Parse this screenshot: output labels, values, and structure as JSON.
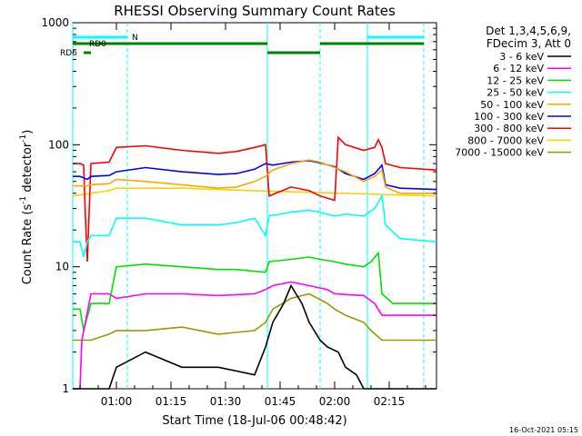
{
  "chart_data": {
    "type": "line",
    "title": "RHESSI Observing Summary Count Rates",
    "xlabel": "Start Time (18-Jul-06 00:48:42)",
    "ylabel_main": "Count Rate (s",
    "ylabel_sup1": "-1",
    "ylabel_mid": " detector",
    "ylabel_sup2": "-1",
    "ylabel_end": ")",
    "yscale": "log",
    "ylim": [
      1,
      1000
    ],
    "xlim_minutes": [
      0,
      100
    ],
    "x_ticks": [
      {
        "label": "01:00",
        "minute": 12
      },
      {
        "label": "01:15",
        "minute": 27
      },
      {
        "label": "01:30",
        "minute": 42
      },
      {
        "label": "01:45",
        "minute": 57
      },
      {
        "label": "02:00",
        "minute": 72
      },
      {
        "label": "02:15",
        "minute": 87
      }
    ],
    "y_ticks": [
      {
        "label": "1",
        "value": 1
      },
      {
        "label": "10",
        "value": 10
      },
      {
        "label": "100",
        "value": 100
      },
      {
        "label": "1000",
        "value": 1000
      }
    ],
    "legend_header": [
      "Det 1,3,4,5,6,9,",
      "FDecim 3, Att 0"
    ],
    "series": [
      {
        "name": "3 - 6 keV",
        "color": "#000000",
        "x": [
          0,
          10,
          12,
          20,
          30,
          40,
          50,
          53,
          55,
          58,
          60,
          63,
          65,
          68,
          70,
          73,
          75,
          78,
          80,
          82,
          100
        ],
        "y": [
          1,
          1,
          1.5,
          2,
          1.5,
          1.5,
          1.3,
          2.2,
          3.5,
          5,
          7,
          5,
          3.5,
          2.5,
          2.2,
          2,
          1.5,
          1.3,
          1,
          1,
          1
        ]
      },
      {
        "name": "6 - 12 keV",
        "color": "#ff00ff",
        "x": [
          0,
          2,
          2.5,
          5,
          10,
          12,
          20,
          30,
          40,
          50,
          53,
          55,
          60,
          65,
          70,
          72,
          80,
          83,
          85,
          100
        ],
        "y": [
          1,
          1,
          2.5,
          6,
          6,
          5.5,
          6,
          6,
          5.8,
          6,
          6.5,
          7,
          7.5,
          7,
          6.5,
          6,
          5.8,
          5,
          4,
          4
        ]
      },
      {
        "name": "12 - 25 keV",
        "color": "#00e000",
        "x": [
          0,
          2,
          3,
          5,
          10,
          12,
          20,
          30,
          40,
          45,
          53,
          54,
          60,
          65,
          68,
          72,
          75,
          80,
          82,
          84,
          85,
          88,
          100
        ],
        "y": [
          4.5,
          4.5,
          3,
          5,
          5,
          10,
          10.5,
          10,
          9.5,
          9.5,
          9,
          11,
          11.5,
          12,
          11.5,
          11,
          10.5,
          10,
          11,
          13,
          6,
          5,
          5
        ]
      },
      {
        "name": "25 - 50 keV",
        "color": "#00ffff",
        "x": [
          0,
          2,
          3,
          4,
          5,
          10,
          12,
          20,
          30,
          40,
          45,
          50,
          53,
          54,
          60,
          65,
          68,
          72,
          75,
          80,
          83,
          85,
          86,
          90,
          100
        ],
        "y": [
          16,
          16,
          12,
          16,
          18,
          18,
          25,
          25,
          22,
          22,
          23,
          25,
          18,
          26,
          28,
          29,
          28,
          26,
          27,
          26,
          30,
          38,
          22,
          17,
          16
        ]
      },
      {
        "name": "50 - 100 keV",
        "color": "#ffa500",
        "x": [
          0,
          2,
          4,
          5,
          10,
          12,
          20,
          30,
          40,
          45,
          50,
          53,
          55,
          60,
          65,
          68,
          72,
          75,
          80,
          83,
          85,
          86,
          90,
          100
        ],
        "y": [
          46,
          46,
          46,
          47,
          48,
          52,
          50,
          47,
          44,
          45,
          50,
          55,
          62,
          70,
          75,
          72,
          65,
          60,
          50,
          55,
          62,
          45,
          40,
          40
        ]
      },
      {
        "name": "100 - 300 keV",
        "color": "#0000ff",
        "x": [
          0,
          2,
          4,
          5,
          10,
          12,
          20,
          30,
          40,
          45,
          50,
          53,
          55,
          60,
          65,
          68,
          72,
          75,
          80,
          83,
          85,
          86,
          90,
          100
        ],
        "y": [
          55,
          55,
          52,
          55,
          56,
          60,
          65,
          60,
          57,
          58,
          63,
          70,
          68,
          72,
          74,
          71,
          66,
          58,
          52,
          58,
          68,
          47,
          44,
          43
        ]
      },
      {
        "name": "300 - 800 keV",
        "color": "#ff0000",
        "x": [
          0,
          2,
          3,
          3.5,
          4,
          5,
          10,
          12,
          20,
          30,
          40,
          45,
          50,
          53,
          54,
          60,
          65,
          68,
          72,
          73,
          75,
          80,
          83,
          84,
          85,
          86,
          90,
          100
        ],
        "y": [
          70,
          70,
          68,
          25,
          11,
          70,
          72,
          95,
          98,
          90,
          85,
          88,
          95,
          100,
          38,
          45,
          42,
          38,
          35,
          115,
          100,
          90,
          95,
          110,
          95,
          70,
          65,
          62
        ]
      },
      {
        "name": "800 - 7000 keV",
        "color": "#ffd000",
        "x": [
          0,
          5,
          10,
          12,
          30,
          50,
          100
        ],
        "y": [
          38,
          40,
          42,
          44,
          44,
          42,
          38
        ]
      },
      {
        "name": "7000 - 15000 keV",
        "color": "#999900",
        "x": [
          0,
          5,
          10,
          12,
          20,
          30,
          40,
          50,
          53,
          55,
          60,
          65,
          70,
          72,
          75,
          80,
          82,
          85,
          88,
          90,
          100
        ],
        "y": [
          2.5,
          2.5,
          2.8,
          3,
          3,
          3.2,
          2.8,
          3,
          3.5,
          4.5,
          5.5,
          6,
          5,
          4.5,
          4,
          3.5,
          3,
          2.5,
          2.5,
          2.5,
          2.5
        ]
      }
    ],
    "attenuator_text": "N",
    "decimation_labels": [
      "RD0",
      "RD6"
    ],
    "vertical_lines_minutes": [
      {
        "minute": 0,
        "style": "solid"
      },
      {
        "minute": 15,
        "style": "dashed"
      },
      {
        "minute": 53.5,
        "style": "solid"
      },
      {
        "minute": 68,
        "style": "dashed"
      },
      {
        "minute": 81,
        "style": "solid"
      },
      {
        "minute": 96.5,
        "style": "dashed"
      }
    ],
    "top_segments_minutes": [
      {
        "row": "n",
        "color": "#00ffff",
        "from": 0,
        "to": 15
      },
      {
        "row": "n",
        "color": "#00ffff",
        "from": 81,
        "to": 96.5
      },
      {
        "row": "rd0",
        "color": "#008000",
        "from": 0,
        "to": 53.5
      },
      {
        "row": "rd0",
        "color": "#008000",
        "from": 68,
        "to": 96.5
      },
      {
        "row": "rd6",
        "color": "#008000",
        "from": 3,
        "to": 5
      },
      {
        "row": "rd6",
        "color": "#008000",
        "from": 53.5,
        "to": 68
      }
    ],
    "footer_timestamp": "16-Oct-2021 05:15",
    "legend_placement": "right"
  }
}
